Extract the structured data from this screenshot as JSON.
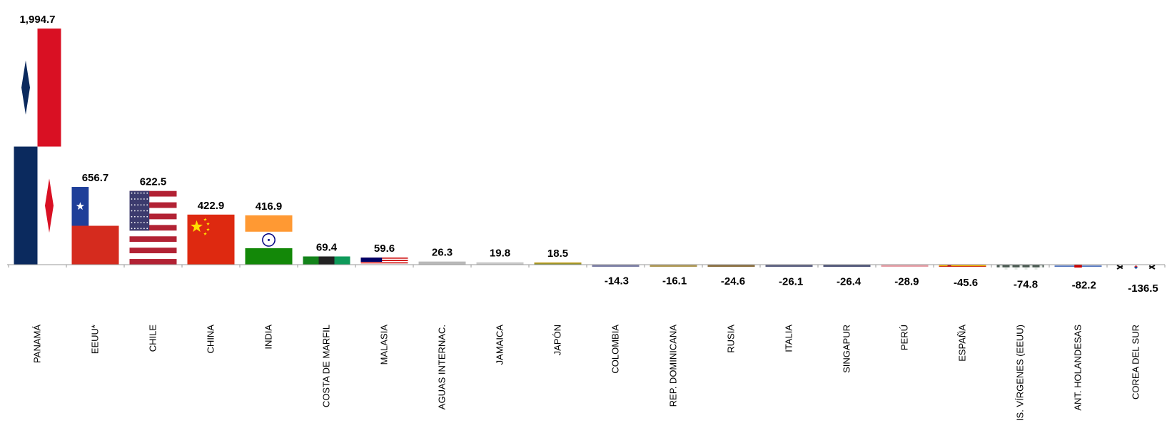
{
  "chart_data": {
    "type": "bar",
    "title": "",
    "xlabel": "",
    "ylabel": "",
    "grid": false,
    "legend": "none",
    "categories": [
      "PANAMÁ",
      "EEUU*",
      "CHILE",
      "CHINA",
      "INDIA",
      "COSTA DE MARFIL",
      "MALASIA",
      "AGUAS INTERNAC.",
      "JAMAICA",
      "JAPÓN",
      "COLOMBIA",
      "REP. DOMINICANA",
      "RUSIA",
      "ITALIA",
      "SINGAPUR",
      "PERÚ",
      "ESPAÑA",
      "IS. VÍRGENES (EEUU)",
      "ANT. HOLANDESAS",
      "COREA DEL SUR"
    ],
    "values": [
      1994.7,
      656.7,
      622.5,
      422.9,
      416.9,
      69.4,
      59.6,
      26.3,
      19.8,
      18.5,
      -14.3,
      -16.1,
      -24.6,
      -26.1,
      -26.4,
      -28.9,
      -45.6,
      -74.8,
      -82.2,
      -136.5
    ],
    "value_labels": [
      "1,994.7",
      "656.7",
      "622.5",
      "422.9",
      "416.9",
      "69.4",
      "59.6",
      "26.3",
      "19.8",
      "18.5",
      "-14.3",
      "-16.1",
      "-24.6",
      "-26.1",
      "-26.4",
      "-28.9",
      "-45.6",
      "-74.8",
      "-82.2",
      "-136.5"
    ],
    "bar_fill": [
      "flag-panama",
      "flag-chile",
      "flag-usa",
      "flag-china",
      "flag-india",
      "flag-ivory-coast",
      "flag-malaysia",
      "#b8b8b8",
      "#c8c8c8",
      "flag-japan-band",
      "#7c7fa6",
      "#b09a55",
      "#8b6f3f",
      "#5a5e80",
      "#4e5478",
      "#e8a0a8",
      "flag-spain",
      "flag-virgin-islands",
      "flag-netherlands-antilles",
      "flag-south-korea"
    ],
    "ylim": [
      -136.5,
      1994.7
    ]
  }
}
